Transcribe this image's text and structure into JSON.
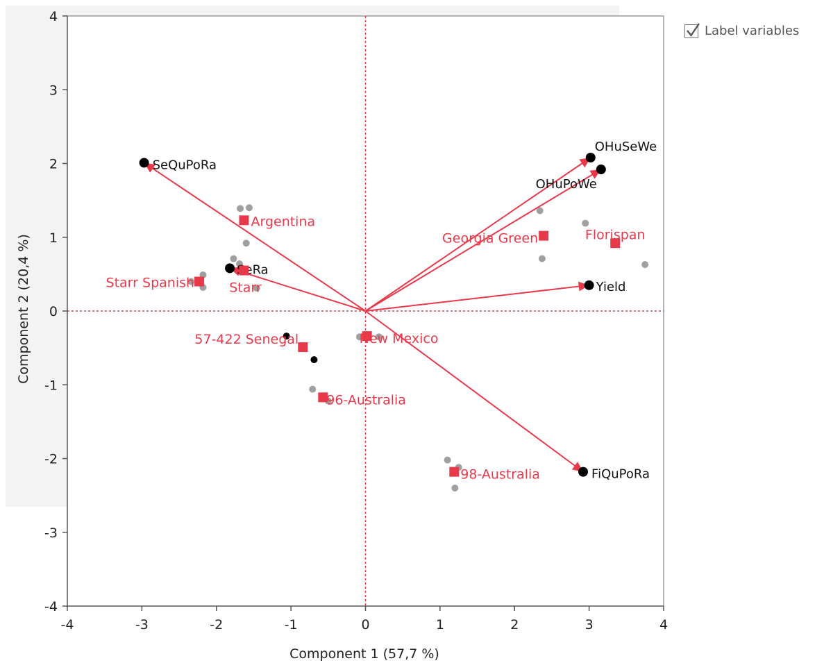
{
  "chart_data": {
    "type": "scatter",
    "xlabel": "Component 1  (57,7 %)",
    "ylabel": "Component 2  (20,4 %)",
    "xlim": [
      -4,
      4
    ],
    "ylim": [
      -4,
      4
    ],
    "xticks": [
      "-4",
      "-3",
      "-2",
      "-1",
      "0",
      "1",
      "2",
      "3",
      "4"
    ],
    "yticks": [
      "4",
      "3",
      "2",
      "1",
      "0",
      "-1",
      "-2",
      "-3",
      "-4"
    ],
    "reference_lines": {
      "x": 0,
      "y": 0,
      "style": "dotted"
    },
    "colors": {
      "groups": "#e8394a",
      "vectors": "#e8394a",
      "points": "#a0a0a0",
      "variable_points": "#000000"
    },
    "variables": [
      {
        "label": "SeQuPoRa",
        "x": -2.97,
        "y": 2.01
      },
      {
        "label": "OHuSeWe",
        "x": 3.02,
        "y": 2.08
      },
      {
        "label": "OHuPoWe",
        "x": 3.16,
        "y": 1.92
      },
      {
        "label": "Yield",
        "x": 3.0,
        "y": 0.35
      },
      {
        "label": "SeRa",
        "x": -1.82,
        "y": 0.58
      },
      {
        "label": "FiQuPoRa",
        "x": 2.92,
        "y": -2.18
      }
    ],
    "groups": [
      {
        "label": "Argentina",
        "x": -1.63,
        "y": 1.23
      },
      {
        "label": "Starr Spanish",
        "x": -2.23,
        "y": 0.4
      },
      {
        "label": "Starr",
        "x": -1.63,
        "y": 0.55
      },
      {
        "label": "Georgia Green",
        "x": 2.39,
        "y": 1.02
      },
      {
        "label": "Florispan",
        "x": 3.35,
        "y": 0.92
      },
      {
        "label": "57-422 Senegal",
        "x": -0.84,
        "y": -0.49
      },
      {
        "label": "New Mexico",
        "x": 0.02,
        "y": -0.34
      },
      {
        "label": "96-Australia",
        "x": -0.57,
        "y": -1.17
      },
      {
        "label": "98-Australia",
        "x": 1.19,
        "y": -2.18
      }
    ],
    "points": [
      {
        "x": -1.68,
        "y": 1.39
      },
      {
        "x": -1.56,
        "y": 1.4
      },
      {
        "x": -1.6,
        "y": 0.92
      },
      {
        "x": -1.77,
        "y": 0.71
      },
      {
        "x": -1.69,
        "y": 0.64
      },
      {
        "x": -1.46,
        "y": 0.31
      },
      {
        "x": -2.18,
        "y": 0.49
      },
      {
        "x": -2.18,
        "y": 0.32
      },
      {
        "x": -2.34,
        "y": 0.4
      },
      {
        "x": 2.34,
        "y": 1.36
      },
      {
        "x": 2.37,
        "y": 0.71
      },
      {
        "x": 2.95,
        "y": 1.19
      },
      {
        "x": 3.75,
        "y": 0.63
      },
      {
        "x": -0.08,
        "y": -0.35
      },
      {
        "x": 0.18,
        "y": -0.35
      },
      {
        "x": -0.71,
        "y": -1.06
      },
      {
        "x": -0.5,
        "y": -1.22
      },
      {
        "x": 1.1,
        "y": -2.02
      },
      {
        "x": 1.25,
        "y": -2.12
      },
      {
        "x": 1.2,
        "y": -2.4
      }
    ],
    "extra_black_points": [
      {
        "x": -1.06,
        "y": -0.34
      },
      {
        "x": -0.69,
        "y": -0.66
      }
    ]
  },
  "controls": {
    "label_variables": "Label variables",
    "label_variables_checked": true
  }
}
